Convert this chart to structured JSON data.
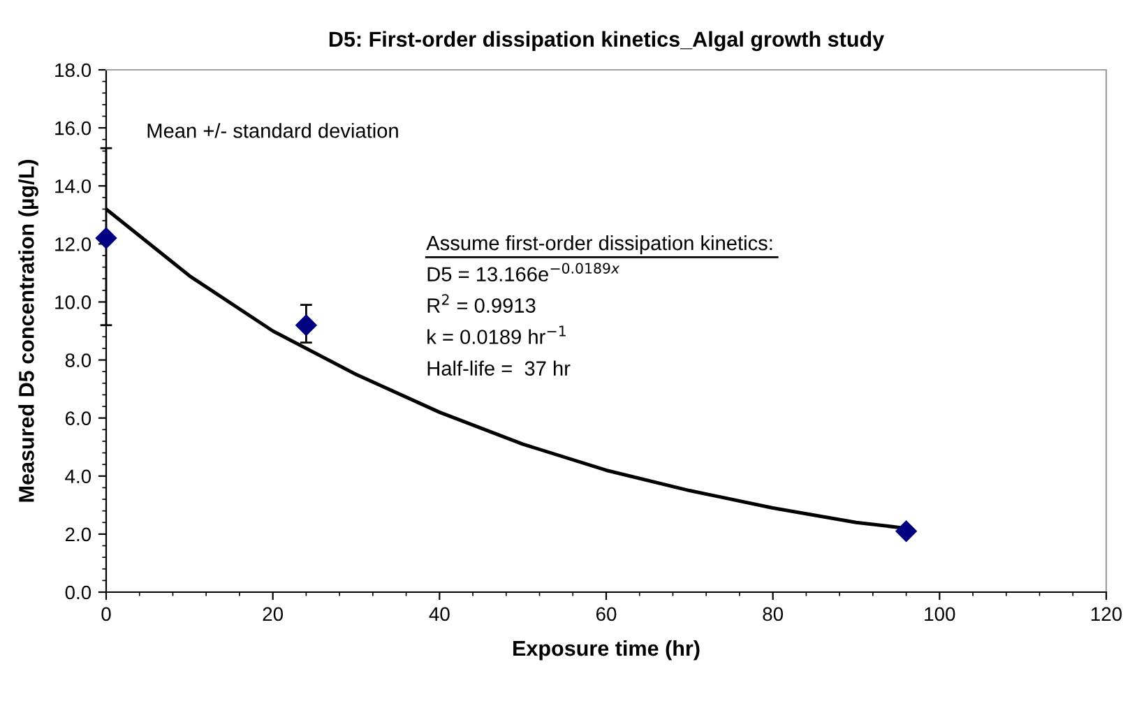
{
  "chart_data": {
    "type": "scatter",
    "title": "D5: First-order dissipation kinetics_Algal growth study",
    "xlabel": "Exposure time (hr)",
    "ylabel": "Measured D5 concentration (µg/L)",
    "series": [
      {
        "color": "#000080",
        "x": [
          0,
          24,
          96
        ],
        "values": [
          12.2,
          9.2,
          2.1
        ],
        "errors": [
          [
            9.2,
            15.3
          ],
          [
            8.6,
            9.9
          ],
          null
        ],
        "marker": "diamond"
      },
      {
        "type": "line",
        "color": "#000000",
        "x": [
          0,
          10,
          20,
          30,
          40,
          50,
          60,
          70,
          80,
          90,
          96
        ],
        "values": [
          13.2,
          10.9,
          9.0,
          7.5,
          6.2,
          5.1,
          4.2,
          3.5,
          2.9,
          2.4,
          2.2
        ],
        "marker": "none",
        "line_style": "solid"
      }
    ],
    "xlim": [
      0,
      120
    ],
    "xticks": [
      0,
      20,
      40,
      60,
      80,
      100,
      120
    ],
    "ylim": [
      0,
      18
    ],
    "yticks": [
      {
        "value": 0,
        "label": "0.0"
      },
      {
        "value": 2,
        "label": "2.0"
      },
      {
        "value": 4,
        "label": "4.0"
      },
      {
        "value": 6,
        "label": "6.0"
      },
      {
        "value": 8,
        "label": "8.0"
      },
      {
        "value": 10,
        "label": "10.0"
      },
      {
        "value": 12,
        "label": "12.0"
      },
      {
        "value": 14,
        "label": "14.0"
      },
      {
        "value": 16,
        "label": "16.0"
      },
      {
        "value": 18,
        "label": "18.0"
      }
    ],
    "grid": false,
    "legend": false,
    "annotations": [
      "Mean +/- standard deviation",
      "Assume first-order dissipation kinetics:",
      "D5 = 13.166e$^{−0.0189x}$",
      "R$^{2}$ = 0.9913",
      "k = 0.0189 hr$^{−1}$",
      "Half-life =  37 hr"
    ]
  }
}
